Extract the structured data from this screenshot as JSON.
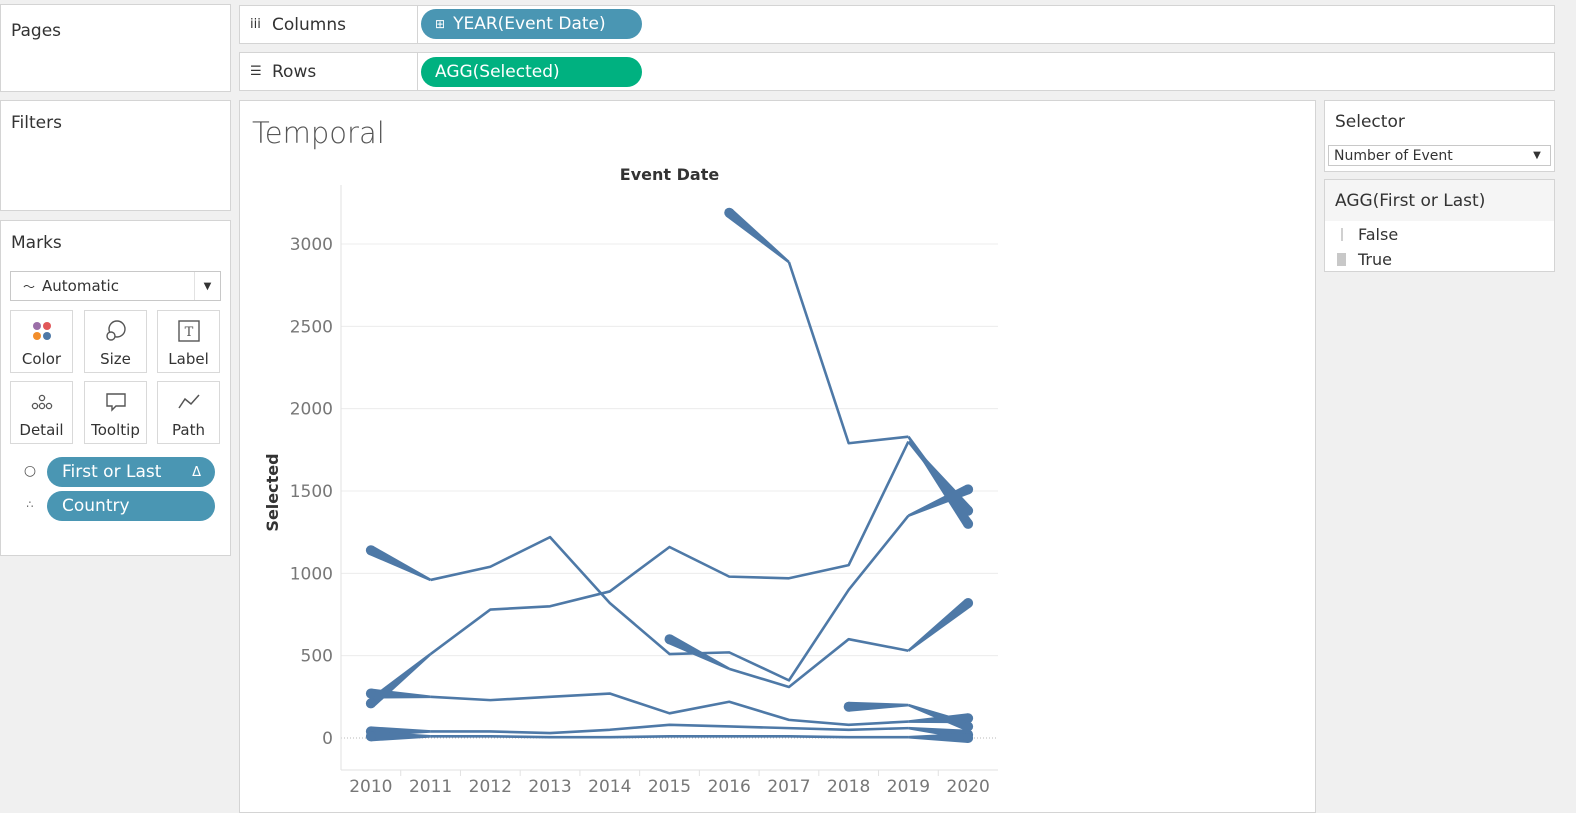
{
  "pages": {
    "title": "Pages"
  },
  "filters": {
    "title": "Filters"
  },
  "columns": {
    "label": "Columns",
    "icon": "columns-icon",
    "pill": "YEAR(Event Date)"
  },
  "rows": {
    "label": "Rows",
    "icon": "rows-icon",
    "pill": "AGG(Selected)"
  },
  "marks": {
    "title": "Marks",
    "type": "Automatic",
    "buttons": [
      "Color",
      "Size",
      "Label",
      "Detail",
      "Tooltip",
      "Path"
    ],
    "pills": [
      {
        "label": "First or Last",
        "badge": "Δ",
        "icon": "size-icon"
      },
      {
        "label": "Country",
        "icon": "detail-icon"
      }
    ]
  },
  "view": {
    "title": "Temporal"
  },
  "selector": {
    "title": "Selector",
    "value": "Number of Event"
  },
  "size_legend": {
    "title": "AGG(First or Last)",
    "items": [
      "False",
      "True"
    ]
  },
  "colors": {
    "line": "#4e79a7",
    "pill_blue": "#4a96b3",
    "pill_green": "#00b180"
  },
  "chart_data": {
    "type": "line",
    "title": "Event Date",
    "xlabel": "Event Date",
    "ylabel": "Selected",
    "x": [
      2010,
      2011,
      2012,
      2013,
      2014,
      2015,
      2016,
      2017,
      2018,
      2019,
      2020
    ],
    "yticks": [
      0,
      500,
      1000,
      1500,
      2000,
      2500,
      3000
    ],
    "ylim": [
      -200,
      3300
    ],
    "series": [
      {
        "x": [
          2010,
          2011,
          2012,
          2013,
          2014,
          2015,
          2016,
          2017,
          2018,
          2019,
          2020
        ],
        "values": [
          1140,
          960,
          1040,
          1220,
          820,
          510,
          520,
          350,
          900,
          1350,
          1510
        ]
      },
      {
        "x": [
          2010,
          2011,
          2012,
          2013,
          2014,
          2015,
          2016,
          2017,
          2018,
          2019,
          2020
        ],
        "values": [
          210,
          510,
          780,
          800,
          890,
          1160,
          980,
          970,
          1050,
          1800,
          1380
        ]
      },
      {
        "x": [
          2016,
          2017,
          2018,
          2019,
          2020
        ],
        "values": [
          3190,
          2890,
          1790,
          1830,
          1300
        ]
      },
      {
        "x": [
          2015,
          2016,
          2017,
          2018,
          2019,
          2020
        ],
        "values": [
          600,
          420,
          310,
          600,
          530,
          820
        ]
      },
      {
        "x": [
          2010,
          2011,
          2012,
          2013,
          2014,
          2015,
          2016,
          2017,
          2018,
          2019,
          2020
        ],
        "values": [
          270,
          250,
          230,
          250,
          270,
          150,
          220,
          110,
          80,
          100,
          120
        ]
      },
      {
        "x": [
          2018,
          2019,
          2020
        ],
        "values": [
          190,
          200,
          70
        ]
      },
      {
        "x": [
          2010,
          2011,
          2012,
          2013,
          2014,
          2015,
          2016,
          2017,
          2018,
          2019,
          2020
        ],
        "values": [
          40,
          40,
          40,
          30,
          50,
          80,
          70,
          60,
          50,
          60,
          20
        ]
      },
      {
        "x": [
          2010,
          2011,
          2012,
          2013,
          2014,
          2015,
          2016,
          2017,
          2018,
          2019,
          2020
        ],
        "values": [
          10,
          10,
          10,
          5,
          5,
          10,
          10,
          10,
          5,
          5,
          0
        ]
      }
    ]
  }
}
